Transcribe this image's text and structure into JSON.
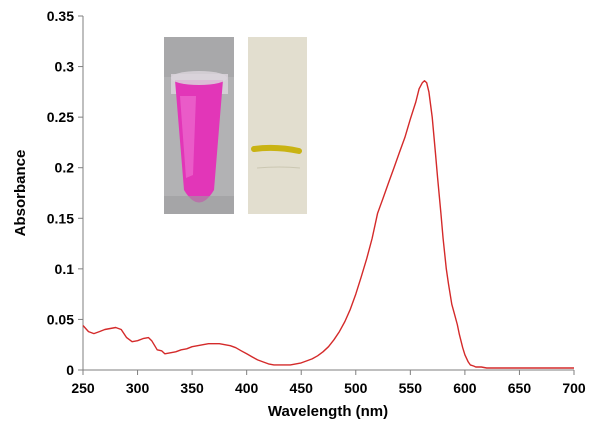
{
  "chart_data": {
    "type": "line",
    "title": "",
    "xlabel": "Wavelength (nm)",
    "ylabel": "Absorbance",
    "xlim": [
      250,
      700
    ],
    "ylim": [
      0,
      0.35
    ],
    "xticks": [
      250,
      300,
      350,
      400,
      450,
      500,
      550,
      600,
      650,
      700
    ],
    "yticks": [
      0,
      0.05,
      0.1,
      0.15,
      0.2,
      0.25,
      0.3,
      0.35
    ],
    "ytick_labels": [
      "0",
      "0.05",
      "0.1",
      "0.15",
      "0.2",
      "0.25",
      "0.3",
      "0.35"
    ],
    "grid": false,
    "legend": "none",
    "series": [
      {
        "color": "#d42a2a",
        "x": [
          250,
          255,
          260,
          265,
          270,
          275,
          280,
          285,
          290,
          295,
          300,
          305,
          310,
          313,
          318,
          322,
          325,
          330,
          335,
          340,
          345,
          350,
          355,
          360,
          365,
          370,
          375,
          380,
          385,
          390,
          395,
          400,
          405,
          410,
          415,
          420,
          425,
          430,
          435,
          440,
          445,
          450,
          455,
          460,
          465,
          470,
          475,
          480,
          485,
          490,
          495,
          500,
          505,
          510,
          515,
          520,
          525,
          530,
          535,
          540,
          545,
          550,
          555,
          558,
          561,
          563,
          565,
          567,
          570,
          573,
          575,
          578,
          580,
          583,
          585,
          588,
          590,
          593,
          595,
          598,
          600,
          603,
          605,
          608,
          610,
          615,
          620,
          630,
          640,
          650,
          660,
          680,
          700
        ],
        "y": [
          0.044,
          0.038,
          0.036,
          0.038,
          0.04,
          0.041,
          0.042,
          0.04,
          0.032,
          0.028,
          0.029,
          0.031,
          0.032,
          0.029,
          0.02,
          0.019,
          0.016,
          0.017,
          0.018,
          0.02,
          0.021,
          0.023,
          0.024,
          0.025,
          0.026,
          0.026,
          0.026,
          0.025,
          0.024,
          0.022,
          0.019,
          0.016,
          0.013,
          0.01,
          0.008,
          0.006,
          0.005,
          0.005,
          0.005,
          0.005,
          0.006,
          0.007,
          0.009,
          0.011,
          0.014,
          0.018,
          0.023,
          0.03,
          0.038,
          0.048,
          0.06,
          0.075,
          0.092,
          0.11,
          0.13,
          0.155,
          0.17,
          0.185,
          0.2,
          0.215,
          0.23,
          0.248,
          0.265,
          0.278,
          0.284,
          0.286,
          0.284,
          0.275,
          0.25,
          0.215,
          0.19,
          0.155,
          0.13,
          0.1,
          0.085,
          0.065,
          0.057,
          0.045,
          0.035,
          0.022,
          0.015,
          0.008,
          0.005,
          0.004,
          0.003,
          0.003,
          0.002,
          0.002,
          0.002,
          0.002,
          0.002,
          0.002,
          0.002
        ]
      }
    ]
  }
}
